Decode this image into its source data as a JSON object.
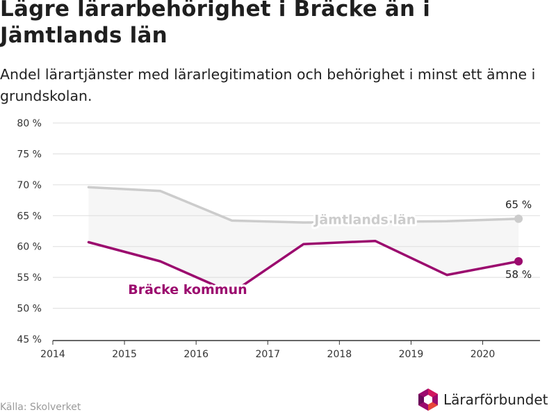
{
  "title": "Lägre lärarbehörighet i Bräcke än i Jämtlands län",
  "subtitle": "Andel lärartjänster med lärarlegitimation och behörighet i minst ett ämne i grundskolan.",
  "source": "Källa: Skolverket",
  "logo": {
    "text": "Lärarförbundet",
    "icon": "lararforbundet-logo-icon"
  },
  "colors": {
    "jamtland": "#cccccc",
    "bracke": "#9b0a6e",
    "band": "#f6f6f6",
    "grid": "#dddddd"
  },
  "chart_data": {
    "type": "line",
    "x": [
      2014.5,
      2015.5,
      2016.5,
      2017.5,
      2018.5,
      2019.5,
      2020.5
    ],
    "xticks": [
      2014,
      2015,
      2016,
      2017,
      2018,
      2019,
      2020
    ],
    "xtick_labels": [
      "2014",
      "2015",
      "2016",
      "2017",
      "2018",
      "2019",
      "2020"
    ],
    "xlim": [
      2014,
      2020.8
    ],
    "ylim": [
      45,
      80
    ],
    "yticks": [
      45,
      50,
      55,
      60,
      65,
      70,
      75,
      80
    ],
    "ytick_labels": [
      "45 %",
      "50 %",
      "55 %",
      "60 %",
      "65 %",
      "70 %",
      "75 %",
      "80 %"
    ],
    "grid": true,
    "series": [
      {
        "name": "Jämtlands län",
        "values": [
          69.6,
          69.0,
          64.2,
          63.9,
          64.0,
          64.1,
          64.5
        ],
        "end_label": "65 %"
      },
      {
        "name": "Bräcke kommun",
        "values": [
          60.7,
          57.6,
          52.5,
          60.4,
          60.9,
          55.4,
          57.6
        ],
        "end_label": "58 %"
      }
    ]
  }
}
